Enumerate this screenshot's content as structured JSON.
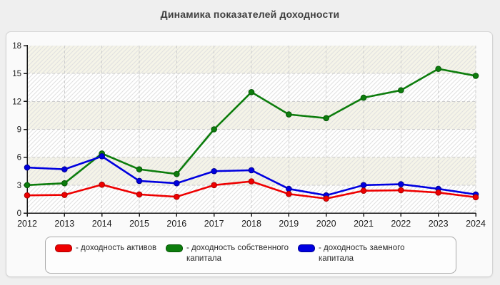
{
  "title": "Динамика показателей доходности",
  "colors": {
    "page_bg": "#efefef",
    "panel_bg": "#fafafa",
    "panel_border": "#d4d4d4",
    "band_white": "#ffffff",
    "band_cream": "#f5f4e8",
    "hatch": "#e0e0e0",
    "grid": "#cccccc",
    "axis": "#1a1a1a",
    "tick_text": "#222222",
    "red": "#ee0000",
    "red_dark": "#a80000",
    "green": "#0d7d0d",
    "green_dark": "#055505",
    "blue": "#0000e0",
    "blue_dark": "#000090"
  },
  "legend": {
    "items": [
      {
        "label": "- доходность активов",
        "color": "#ee0000",
        "border": "#a80000"
      },
      {
        "label": "- доходность собственного капитала",
        "color": "#0d7d0d",
        "border": "#055505"
      },
      {
        "label": "- доходность заемного капитала",
        "color": "#0000e0",
        "border": "#000090"
      }
    ]
  },
  "chart_data": {
    "type": "line",
    "title": "Динамика показателей доходности",
    "x": [
      2012,
      2013,
      2014,
      2015,
      2016,
      2017,
      2018,
      2019,
      2020,
      2021,
      2022,
      2023,
      2024
    ],
    "series": [
      {
        "name": "доходность активов",
        "color": "#ee0000",
        "point_border": "#a80000",
        "values": [
          1.9,
          1.95,
          3.05,
          2.0,
          1.75,
          3.0,
          3.4,
          2.05,
          1.55,
          2.4,
          2.45,
          2.2,
          1.7
        ]
      },
      {
        "name": "доходность собственного капитала",
        "color": "#0d7d0d",
        "point_border": "#055505",
        "values": [
          3.0,
          3.2,
          6.4,
          4.7,
          4.2,
          9.0,
          13.0,
          10.6,
          10.2,
          12.4,
          13.2,
          15.5,
          14.75
        ]
      },
      {
        "name": "доходность заемного капитала",
        "color": "#0000e0",
        "point_border": "#000090",
        "values": [
          4.9,
          4.7,
          6.1,
          3.45,
          3.2,
          4.5,
          4.6,
          2.6,
          1.9,
          3.0,
          3.1,
          2.6,
          2.0
        ]
      }
    ],
    "ylim": [
      0,
      18
    ],
    "yticks": [
      0,
      3,
      6,
      9,
      12,
      15,
      18
    ],
    "grid": true,
    "legend_position": "bottom"
  }
}
